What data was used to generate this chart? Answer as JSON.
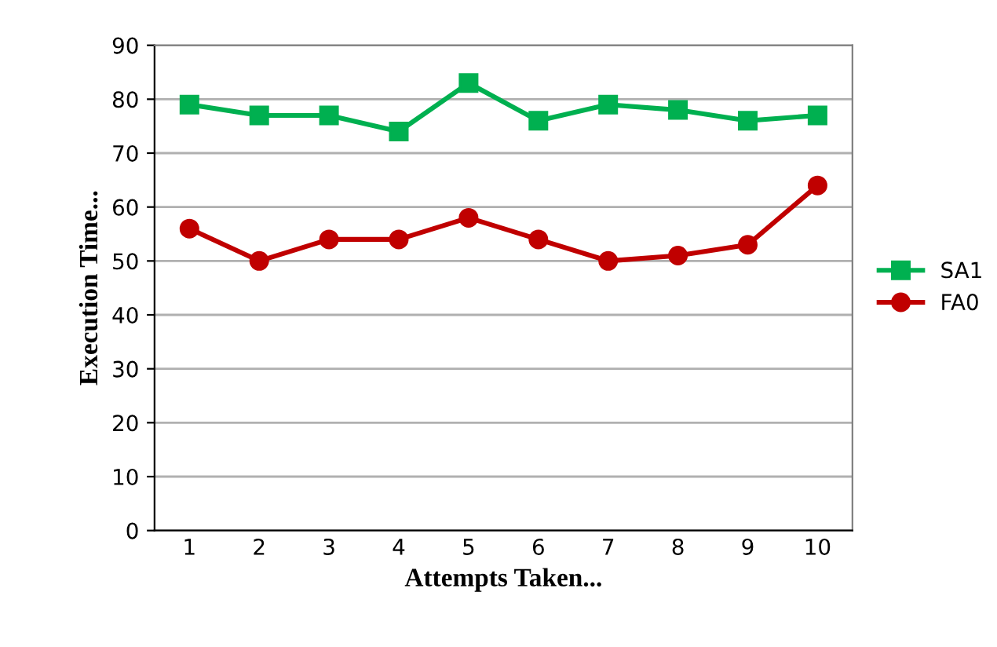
{
  "chart_data": {
    "type": "line",
    "xlabel": "Attempts Taken...",
    "ylabel": "Execution Time...",
    "categories": [
      "1",
      "2",
      "3",
      "4",
      "5",
      "6",
      "7",
      "8",
      "9",
      "10"
    ],
    "series": [
      {
        "name": "SA1",
        "color": "#00b050",
        "marker": "square",
        "values": [
          79,
          77,
          77,
          74,
          83,
          76,
          79,
          78,
          76,
          77
        ]
      },
      {
        "name": "FA0",
        "color": "#c00000",
        "marker": "circle",
        "values": [
          56,
          50,
          54,
          54,
          58,
          54,
          50,
          51,
          53,
          64
        ]
      }
    ],
    "ylim": [
      0,
      90
    ],
    "yticks": [
      0,
      10,
      20,
      30,
      40,
      50,
      60,
      70,
      80,
      90
    ],
    "grid": "y",
    "legend": "right",
    "line_style": "solid"
  }
}
